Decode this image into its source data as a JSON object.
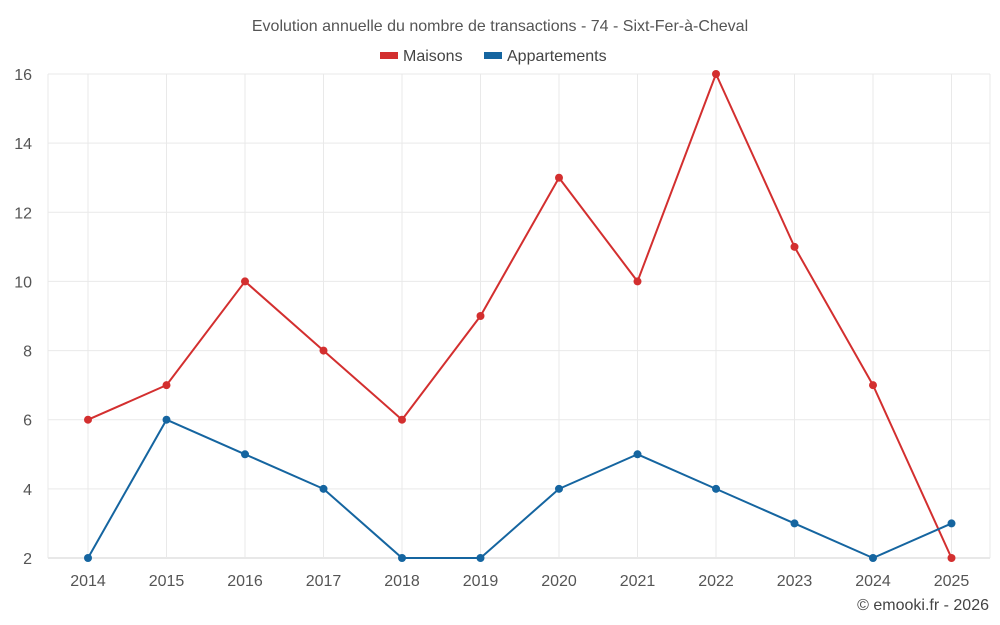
{
  "chart_data": {
    "type": "line",
    "title": "Evolution annuelle du nombre de transactions - 74 - Sixt-Fer-à-Cheval",
    "xlabel": "",
    "ylabel": "",
    "categories": [
      "2014",
      "2015",
      "2016",
      "2017",
      "2018",
      "2019",
      "2020",
      "2021",
      "2022",
      "2023",
      "2024",
      "2025"
    ],
    "ylim": [
      2,
      16
    ],
    "yticks": [
      2,
      4,
      6,
      8,
      10,
      12,
      14,
      16
    ],
    "grid": true,
    "legend_position": "top-center",
    "series": [
      {
        "name": "Maisons",
        "color": "#d32f2f",
        "values": [
          6,
          7,
          10,
          8,
          6,
          9,
          13,
          10,
          16,
          11,
          7,
          2
        ]
      },
      {
        "name": "Appartements",
        "color": "#1565a0",
        "values": [
          2,
          6,
          5,
          4,
          2,
          2,
          4,
          5,
          4,
          3,
          2,
          3
        ]
      }
    ]
  },
  "credit": "© emooki.fr - 2026"
}
